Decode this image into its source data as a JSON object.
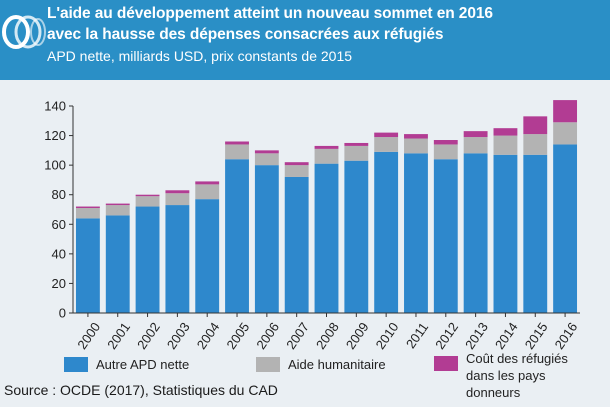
{
  "header": {
    "title_line1": "L'aide au développement atteint un nouveau sommet en 2016",
    "title_line2": "avec la hausse des dépenses consacrées aux réfugiés",
    "subtitle": "APD nette, milliards USD, prix constants de 2015",
    "logo_icon": "oecd-logo-icon",
    "background_color": "#2a8fc6"
  },
  "chart_data": {
    "type": "bar",
    "stacked": true,
    "categories": [
      "2000",
      "2001",
      "2002",
      "2003",
      "2004",
      "2005",
      "2006",
      "2007",
      "2008",
      "2009",
      "2010",
      "2011",
      "2012",
      "2013",
      "2014",
      "2015",
      "2016"
    ],
    "series": [
      {
        "name": "Autre APD nette",
        "color": "#2e88cc",
        "values": [
          64,
          66,
          72,
          73,
          77,
          104,
          100,
          92,
          101,
          103,
          109,
          108,
          104,
          108,
          107,
          107,
          114
        ]
      },
      {
        "name": "Aide humanitaire",
        "color": "#b3b3b3",
        "values": [
          7,
          7,
          7,
          8,
          10,
          10,
          8,
          8,
          10,
          10,
          10,
          10,
          10,
          11,
          13,
          14,
          15
        ]
      },
      {
        "name": "Coût des réfugiés dans les pays donneurs",
        "color": "#b23c93",
        "values": [
          1,
          1,
          1,
          2,
          2,
          2,
          2,
          2,
          2,
          2,
          3,
          3,
          3,
          4,
          5,
          12,
          15
        ]
      }
    ],
    "title": "L'aide au développement atteint un nouveau sommet en 2016",
    "xlabel": "",
    "ylabel": "APD nette, milliards USD, prix constants de 2015",
    "ylim": [
      0,
      140
    ],
    "yticks": [
      0,
      20,
      40,
      60,
      80,
      100,
      120,
      140
    ],
    "grid": false,
    "legend_position": "bottom"
  },
  "legend": [
    {
      "label": "Autre APD nette",
      "color": "#2e88cc"
    },
    {
      "label": "Aide humanitaire",
      "color": "#b3b3b3"
    },
    {
      "label_line1": "Coût des réfugiés",
      "label_line2": "dans les pays",
      "label_line3": "donneurs",
      "color": "#b23c93"
    }
  ],
  "source": "Source : OCDE (2017), Statistiques du CAD"
}
